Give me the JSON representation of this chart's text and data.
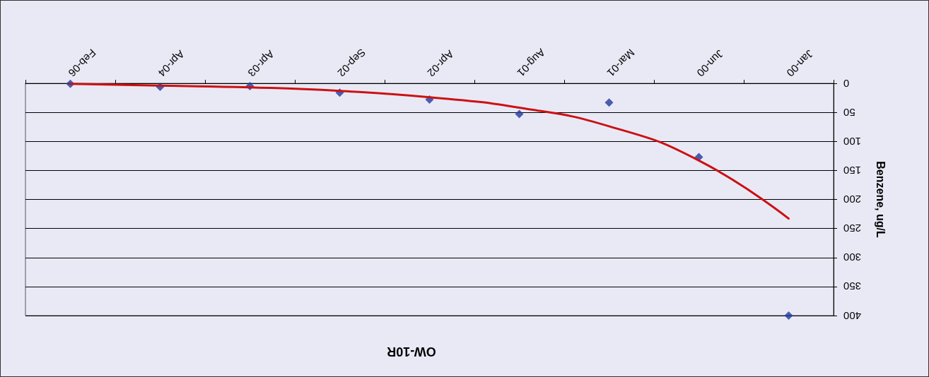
{
  "chart_data": {
    "type": "scatter",
    "title": "OW-10R",
    "ylabel": "Benzene, ug/L",
    "categories": [
      "Feb-06",
      "Apr-04",
      "Apr-03",
      "Sep-02",
      "Apr-02",
      "Aug-01",
      "Mar-01",
      "Jun-00",
      "Jan-00"
    ],
    "series": [
      {
        "color": "#1f3a9e",
        "marker": "diamond",
        "values": [
          1,
          6,
          5,
          16,
          28,
          53,
          33,
          127,
          400
        ]
      },
      {
        "type": "line",
        "color": "#cc1111",
        "marker": "none",
        "line_style": "solid",
        "values": [
          1,
          4,
          7,
          13,
          24,
          42,
          74,
          133,
          233
        ]
      }
    ],
    "ylim": [
      400,
      0
    ],
    "yticks": [
      0,
      50,
      100,
      150,
      200,
      250,
      300,
      350,
      400
    ],
    "grid": "y"
  }
}
